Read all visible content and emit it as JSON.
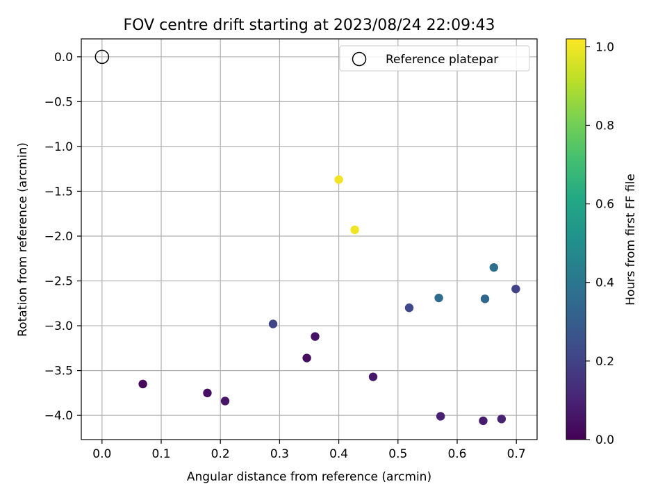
{
  "chart_data": {
    "type": "scatter",
    "title": "FOV centre drift starting at 2023/08/24 22:09:43",
    "xlabel": "Angular distance from reference (arcmin)",
    "ylabel": "Rotation from reference (arcmin)",
    "xlim": [
      -0.035,
      0.735
    ],
    "ylim": [
      -4.27,
      0.2
    ],
    "xticks": [
      0.0,
      0.1,
      0.2,
      0.3,
      0.4,
      0.5,
      0.6,
      0.7
    ],
    "xtick_labels": [
      "0.0",
      "0.1",
      "0.2",
      "0.3",
      "0.4",
      "0.5",
      "0.6",
      "0.7"
    ],
    "yticks": [
      0.0,
      -0.5,
      -1.0,
      -1.5,
      -2.0,
      -2.5,
      -3.0,
      -3.5,
      -4.0
    ],
    "ytick_labels": [
      "0.0",
      "−0.5",
      "−1.0",
      "−1.5",
      "−2.0",
      "−2.5",
      "−3.0",
      "−3.5",
      "−4.0"
    ],
    "grid": true,
    "legend": {
      "placement": "top-right",
      "entries": [
        "Reference platepar"
      ]
    },
    "reference_point": {
      "x": 0.0,
      "y": 0.0
    },
    "colorbar": {
      "label": "Hours from first FF file",
      "colormap": "viridis",
      "range": [
        0.0,
        1.02
      ],
      "ticks": [
        0.0,
        0.2,
        0.4,
        0.6,
        0.8,
        1.0
      ],
      "tick_labels": [
        "0.0",
        "0.2",
        "0.4",
        "0.6",
        "0.8",
        "1.0"
      ]
    },
    "points": [
      {
        "x": 0.069,
        "y": -3.65,
        "hours": 0.02
      },
      {
        "x": 0.178,
        "y": -3.75,
        "hours": 0.04
      },
      {
        "x": 0.208,
        "y": -3.84,
        "hours": 0.06
      },
      {
        "x": 0.289,
        "y": -2.98,
        "hours": 0.21
      },
      {
        "x": 0.346,
        "y": -3.36,
        "hours": 0.03
      },
      {
        "x": 0.36,
        "y": -3.12,
        "hours": 0.05
      },
      {
        "x": 0.4,
        "y": -1.37,
        "hours": 1.0
      },
      {
        "x": 0.427,
        "y": -1.93,
        "hours": 1.0
      },
      {
        "x": 0.458,
        "y": -3.57,
        "hours": 0.07
      },
      {
        "x": 0.519,
        "y": -2.8,
        "hours": 0.22
      },
      {
        "x": 0.569,
        "y": -2.69,
        "hours": 0.36
      },
      {
        "x": 0.572,
        "y": -4.01,
        "hours": 0.09
      },
      {
        "x": 0.644,
        "y": -4.06,
        "hours": 0.08
      },
      {
        "x": 0.647,
        "y": -2.7,
        "hours": 0.34
      },
      {
        "x": 0.662,
        "y": -2.35,
        "hours": 0.37
      },
      {
        "x": 0.675,
        "y": -4.04,
        "hours": 0.1
      },
      {
        "x": 0.699,
        "y": -2.59,
        "hours": 0.2
      }
    ]
  }
}
